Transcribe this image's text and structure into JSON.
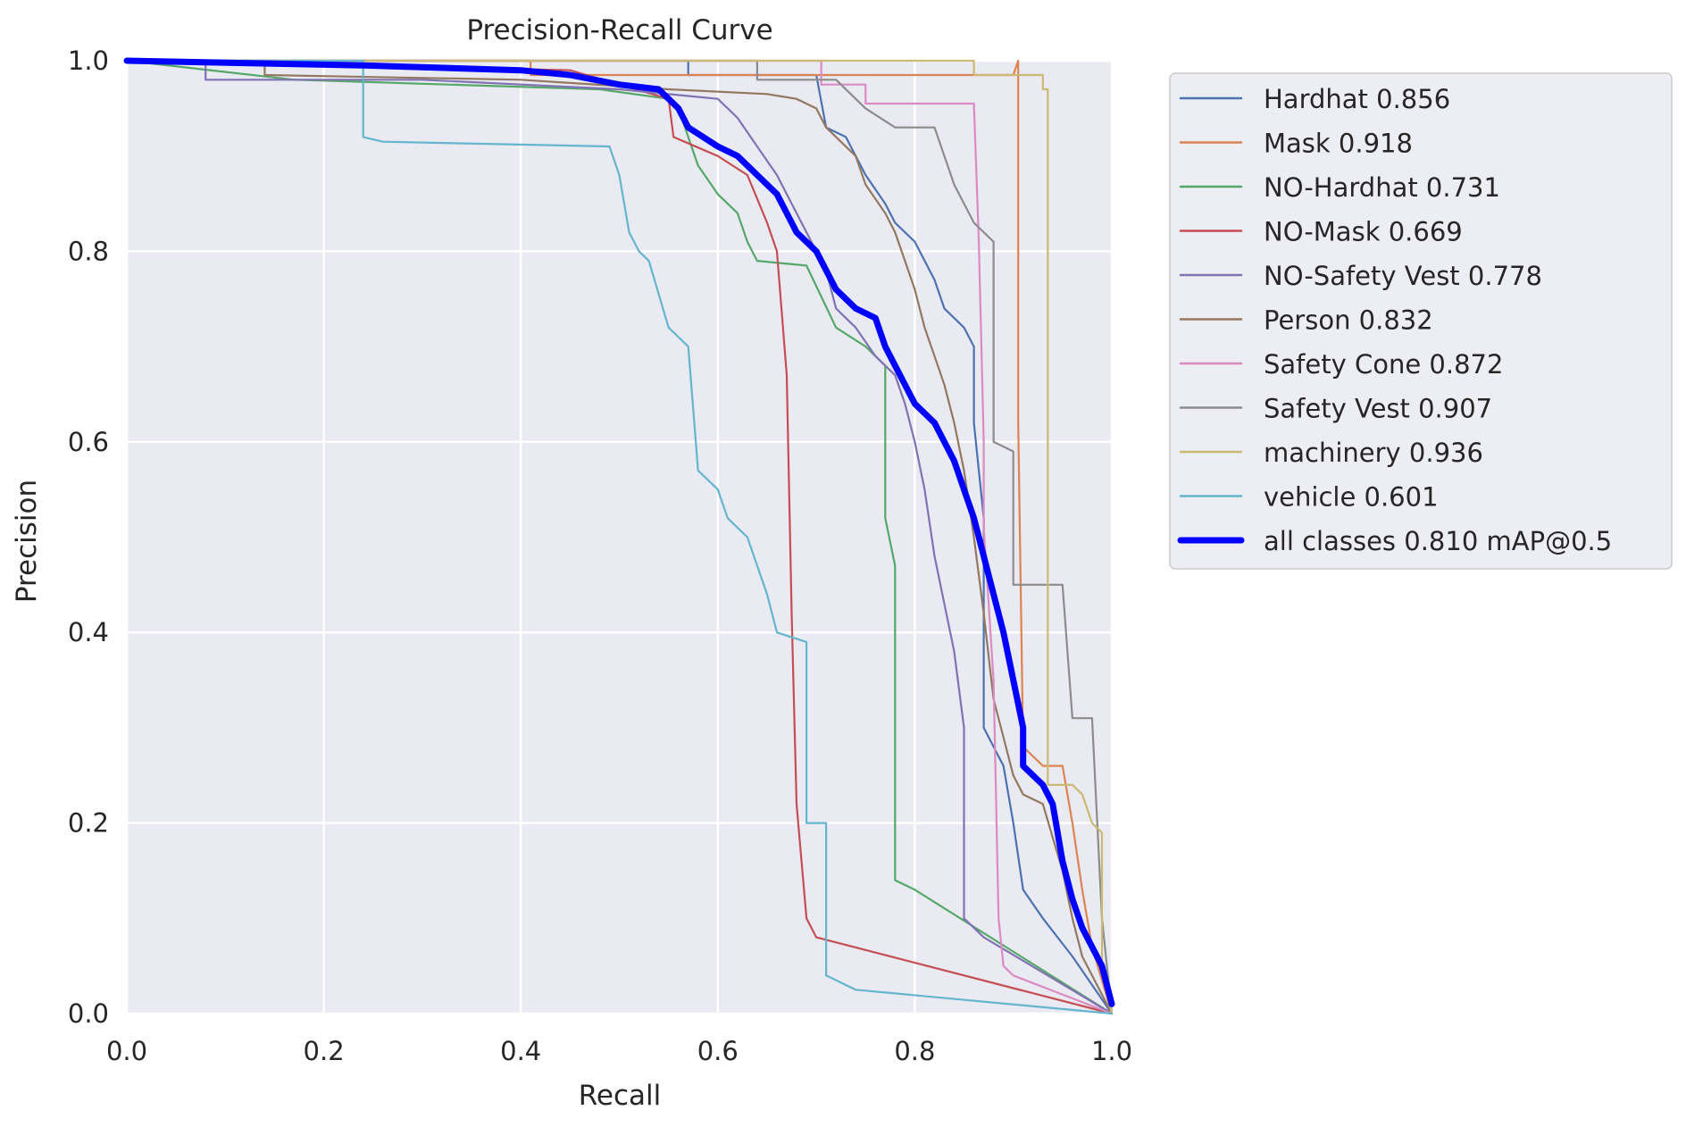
{
  "chart_data": {
    "type": "line",
    "title": "Precision-Recall Curve",
    "xlabel": "Recall",
    "ylabel": "Precision",
    "xlim": [
      0,
      1
    ],
    "ylim": [
      0,
      1
    ],
    "grid": true,
    "background_color": "#eaeaf2",
    "legend_position": "outside-right-top",
    "xticks": [
      {
        "value": 0.0,
        "label": "0.0"
      },
      {
        "value": 0.2,
        "label": "0.2"
      },
      {
        "value": 0.4,
        "label": "0.4"
      },
      {
        "value": 0.6,
        "label": "0.6"
      },
      {
        "value": 0.8,
        "label": "0.8"
      },
      {
        "value": 1.0,
        "label": "1.0"
      }
    ],
    "yticks": [
      {
        "value": 0.0,
        "label": "0.0"
      },
      {
        "value": 0.2,
        "label": "0.2"
      },
      {
        "value": 0.4,
        "label": "0.4"
      },
      {
        "value": 0.6,
        "label": "0.6"
      },
      {
        "value": 0.8,
        "label": "0.8"
      },
      {
        "value": 1.0,
        "label": "1.0"
      }
    ],
    "series": [
      {
        "key": "hardhat",
        "name": "Hardhat 0.856",
        "color": "#4c72b0",
        "thick": false,
        "points": [
          [
            0,
            1
          ],
          [
            0.57,
            1
          ],
          [
            0.57,
            0.985
          ],
          [
            0.7,
            0.985
          ],
          [
            0.71,
            0.93
          ],
          [
            0.73,
            0.92
          ],
          [
            0.75,
            0.88
          ],
          [
            0.77,
            0.85
          ],
          [
            0.78,
            0.83
          ],
          [
            0.8,
            0.81
          ],
          [
            0.82,
            0.77
          ],
          [
            0.83,
            0.74
          ],
          [
            0.85,
            0.72
          ],
          [
            0.86,
            0.7
          ],
          [
            0.86,
            0.62
          ],
          [
            0.87,
            0.52
          ],
          [
            0.87,
            0.3
          ],
          [
            0.89,
            0.26
          ],
          [
            0.9,
            0.2
          ],
          [
            0.91,
            0.13
          ],
          [
            0.93,
            0.1
          ],
          [
            0.96,
            0.06
          ],
          [
            1.0,
            0.0
          ]
        ]
      },
      {
        "key": "mask",
        "name": "Mask 0.918",
        "color": "#dd8452",
        "thick": false,
        "points": [
          [
            0,
            1
          ],
          [
            0.41,
            1
          ],
          [
            0.41,
            0.985
          ],
          [
            0.7,
            0.985
          ],
          [
            0.9,
            0.985
          ],
          [
            0.905,
            1
          ],
          [
            0.905,
            0.62
          ],
          [
            0.91,
            0.28
          ],
          [
            0.93,
            0.26
          ],
          [
            0.95,
            0.26
          ],
          [
            0.96,
            0.2
          ],
          [
            0.97,
            0.13
          ],
          [
            0.98,
            0.07
          ],
          [
            1.0,
            0.0
          ]
        ]
      },
      {
        "key": "no_hardhat",
        "name": "NO-Hardhat 0.731",
        "color": "#55a868",
        "thick": false,
        "points": [
          [
            0,
            1
          ],
          [
            0.17,
            0.98
          ],
          [
            0.48,
            0.97
          ],
          [
            0.55,
            0.96
          ],
          [
            0.56,
            0.95
          ],
          [
            0.57,
            0.92
          ],
          [
            0.58,
            0.89
          ],
          [
            0.6,
            0.86
          ],
          [
            0.62,
            0.84
          ],
          [
            0.63,
            0.81
          ],
          [
            0.64,
            0.79
          ],
          [
            0.69,
            0.785
          ],
          [
            0.72,
            0.72
          ],
          [
            0.75,
            0.7
          ],
          [
            0.77,
            0.68
          ],
          [
            0.77,
            0.52
          ],
          [
            0.78,
            0.47
          ],
          [
            0.78,
            0.14
          ],
          [
            0.8,
            0.13
          ],
          [
            1.0,
            0.0
          ]
        ]
      },
      {
        "key": "no_mask",
        "name": "NO-Mask 0.669",
        "color": "#c44e52",
        "thick": false,
        "points": [
          [
            0,
            1
          ],
          [
            0.45,
            0.99
          ],
          [
            0.55,
            0.96
          ],
          [
            0.555,
            0.92
          ],
          [
            0.6,
            0.9
          ],
          [
            0.63,
            0.88
          ],
          [
            0.65,
            0.83
          ],
          [
            0.66,
            0.8
          ],
          [
            0.67,
            0.67
          ],
          [
            0.675,
            0.42
          ],
          [
            0.68,
            0.22
          ],
          [
            0.69,
            0.1
          ],
          [
            0.7,
            0.08
          ],
          [
            1.0,
            0.0
          ]
        ]
      },
      {
        "key": "no_safety_vest",
        "name": "NO-Safety Vest 0.778",
        "color": "#8172b3",
        "thick": false,
        "points": [
          [
            0,
            1
          ],
          [
            0.08,
            1
          ],
          [
            0.08,
            0.98
          ],
          [
            0.3,
            0.98
          ],
          [
            0.5,
            0.97
          ],
          [
            0.6,
            0.96
          ],
          [
            0.62,
            0.94
          ],
          [
            0.64,
            0.91
          ],
          [
            0.66,
            0.88
          ],
          [
            0.67,
            0.86
          ],
          [
            0.69,
            0.82
          ],
          [
            0.71,
            0.78
          ],
          [
            0.72,
            0.74
          ],
          [
            0.74,
            0.72
          ],
          [
            0.76,
            0.69
          ],
          [
            0.78,
            0.67
          ],
          [
            0.79,
            0.64
          ],
          [
            0.8,
            0.6
          ],
          [
            0.81,
            0.55
          ],
          [
            0.82,
            0.48
          ],
          [
            0.83,
            0.43
          ],
          [
            0.84,
            0.38
          ],
          [
            0.85,
            0.3
          ],
          [
            0.85,
            0.1
          ],
          [
            0.87,
            0.08
          ],
          [
            1.0,
            0.0
          ]
        ]
      },
      {
        "key": "person",
        "name": "Person 0.832",
        "color": "#937860",
        "thick": false,
        "points": [
          [
            0,
            1
          ],
          [
            0.14,
            1
          ],
          [
            0.14,
            0.985
          ],
          [
            0.4,
            0.98
          ],
          [
            0.55,
            0.97
          ],
          [
            0.65,
            0.965
          ],
          [
            0.68,
            0.96
          ],
          [
            0.7,
            0.95
          ],
          [
            0.71,
            0.93
          ],
          [
            0.72,
            0.92
          ],
          [
            0.74,
            0.9
          ],
          [
            0.75,
            0.87
          ],
          [
            0.77,
            0.84
          ],
          [
            0.78,
            0.82
          ],
          [
            0.79,
            0.79
          ],
          [
            0.8,
            0.76
          ],
          [
            0.81,
            0.72
          ],
          [
            0.82,
            0.69
          ],
          [
            0.83,
            0.66
          ],
          [
            0.84,
            0.62
          ],
          [
            0.85,
            0.57
          ],
          [
            0.86,
            0.5
          ],
          [
            0.87,
            0.42
          ],
          [
            0.88,
            0.33
          ],
          [
            0.89,
            0.29
          ],
          [
            0.9,
            0.25
          ],
          [
            0.91,
            0.23
          ],
          [
            0.93,
            0.22
          ],
          [
            0.95,
            0.15
          ],
          [
            0.96,
            0.1
          ],
          [
            0.97,
            0.06
          ],
          [
            0.98,
            0.04
          ],
          [
            1.0,
            0.0
          ]
        ]
      },
      {
        "key": "safety_cone",
        "name": "Safety Cone 0.872",
        "color": "#da8bc3",
        "thick": false,
        "points": [
          [
            0,
            1
          ],
          [
            0.705,
            1
          ],
          [
            0.705,
            0.975
          ],
          [
            0.75,
            0.975
          ],
          [
            0.75,
            0.955
          ],
          [
            0.86,
            0.955
          ],
          [
            0.865,
            0.81
          ],
          [
            0.87,
            0.6
          ],
          [
            0.87,
            0.51
          ],
          [
            0.88,
            0.35
          ],
          [
            0.885,
            0.1
          ],
          [
            0.89,
            0.05
          ],
          [
            0.9,
            0.04
          ],
          [
            1.0,
            0.0
          ]
        ]
      },
      {
        "key": "safety_vest",
        "name": "Safety Vest 0.907",
        "color": "#8c8c8c",
        "thick": false,
        "points": [
          [
            0,
            1
          ],
          [
            0.64,
            1
          ],
          [
            0.64,
            0.98
          ],
          [
            0.72,
            0.98
          ],
          [
            0.75,
            0.95
          ],
          [
            0.78,
            0.93
          ],
          [
            0.79,
            0.93
          ],
          [
            0.82,
            0.93
          ],
          [
            0.84,
            0.87
          ],
          [
            0.86,
            0.83
          ],
          [
            0.88,
            0.81
          ],
          [
            0.88,
            0.6
          ],
          [
            0.9,
            0.59
          ],
          [
            0.9,
            0.45
          ],
          [
            0.93,
            0.45
          ],
          [
            0.95,
            0.45
          ],
          [
            0.96,
            0.31
          ],
          [
            0.98,
            0.31
          ],
          [
            0.99,
            0.1
          ],
          [
            1.0,
            0.0
          ]
        ]
      },
      {
        "key": "machinery",
        "name": "machinery 0.936",
        "color": "#ccb974",
        "thick": false,
        "points": [
          [
            0,
            1
          ],
          [
            0.86,
            1
          ],
          [
            0.86,
            0.985
          ],
          [
            0.93,
            0.985
          ],
          [
            0.93,
            0.97
          ],
          [
            0.935,
            0.97
          ],
          [
            0.935,
            0.24
          ],
          [
            0.96,
            0.24
          ],
          [
            0.97,
            0.23
          ],
          [
            0.98,
            0.2
          ],
          [
            0.99,
            0.19
          ],
          [
            0.99,
            0.05
          ],
          [
            1.0,
            0.0
          ]
        ]
      },
      {
        "key": "vehicle",
        "name": "vehicle 0.601",
        "color": "#64b5cd",
        "thick": false,
        "points": [
          [
            0,
            1
          ],
          [
            0.24,
            1
          ],
          [
            0.24,
            0.92
          ],
          [
            0.26,
            0.915
          ],
          [
            0.49,
            0.91
          ],
          [
            0.5,
            0.88
          ],
          [
            0.51,
            0.82
          ],
          [
            0.52,
            0.8
          ],
          [
            0.53,
            0.79
          ],
          [
            0.55,
            0.72
          ],
          [
            0.57,
            0.7
          ],
          [
            0.58,
            0.57
          ],
          [
            0.6,
            0.55
          ],
          [
            0.61,
            0.52
          ],
          [
            0.63,
            0.5
          ],
          [
            0.64,
            0.47
          ],
          [
            0.65,
            0.44
          ],
          [
            0.66,
            0.4
          ],
          [
            0.69,
            0.39
          ],
          [
            0.69,
            0.2
          ],
          [
            0.71,
            0.2
          ],
          [
            0.71,
            0.04
          ],
          [
            0.73,
            0.03
          ],
          [
            0.74,
            0.025
          ],
          [
            1.0,
            0.0
          ]
        ]
      },
      {
        "key": "all_classes",
        "name": "all classes 0.810 mAP@0.5",
        "color": "#0000ff",
        "thick": true,
        "points": [
          [
            0,
            1
          ],
          [
            0.24,
            0.995
          ],
          [
            0.4,
            0.99
          ],
          [
            0.45,
            0.985
          ],
          [
            0.5,
            0.975
          ],
          [
            0.54,
            0.97
          ],
          [
            0.56,
            0.95
          ],
          [
            0.57,
            0.93
          ],
          [
            0.6,
            0.91
          ],
          [
            0.62,
            0.9
          ],
          [
            0.64,
            0.88
          ],
          [
            0.66,
            0.86
          ],
          [
            0.67,
            0.84
          ],
          [
            0.68,
            0.82
          ],
          [
            0.7,
            0.8
          ],
          [
            0.71,
            0.78
          ],
          [
            0.72,
            0.76
          ],
          [
            0.74,
            0.74
          ],
          [
            0.76,
            0.73
          ],
          [
            0.77,
            0.7
          ],
          [
            0.78,
            0.68
          ],
          [
            0.79,
            0.66
          ],
          [
            0.8,
            0.64
          ],
          [
            0.82,
            0.62
          ],
          [
            0.83,
            0.6
          ],
          [
            0.84,
            0.58
          ],
          [
            0.85,
            0.55
          ],
          [
            0.86,
            0.52
          ],
          [
            0.87,
            0.48
          ],
          [
            0.88,
            0.44
          ],
          [
            0.89,
            0.4
          ],
          [
            0.9,
            0.35
          ],
          [
            0.91,
            0.3
          ],
          [
            0.91,
            0.26
          ],
          [
            0.93,
            0.24
          ],
          [
            0.94,
            0.22
          ],
          [
            0.95,
            0.16
          ],
          [
            0.96,
            0.12
          ],
          [
            0.97,
            0.09
          ],
          [
            0.98,
            0.07
          ],
          [
            0.99,
            0.05
          ],
          [
            1.0,
            0.01
          ]
        ]
      }
    ]
  }
}
